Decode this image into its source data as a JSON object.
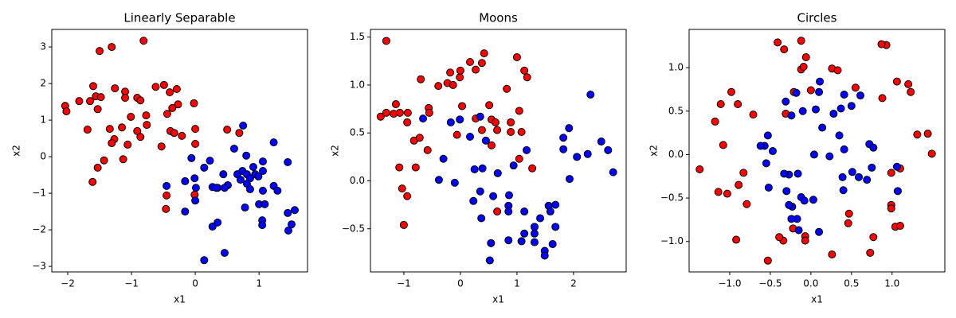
{
  "chart_data": [
    {
      "type": "scatter",
      "title": "Linearly Separable",
      "x_label": "x1",
      "y_label": "x2",
      "xlim": [
        -2.25,
        1.76
      ],
      "ylim": [
        -3.15,
        3.48
      ],
      "xticks": [
        {
          "value": -2,
          "label": "−2"
        },
        {
          "value": -1,
          "label": "−1"
        },
        0,
        1
      ],
      "yticks": [
        {
          "value": -3,
          "label": "−3"
        },
        {
          "value": -2,
          "label": "−2"
        },
        {
          "value": -1,
          "label": "−1"
        },
        0,
        1,
        2,
        3
      ],
      "series": [
        {
          "color": "#ff0000",
          "x": [
            -2.04,
            -2.02,
            -1.82,
            -1.69,
            -1.65,
            -1.6,
            -1.56,
            -1.53,
            -1.5,
            -1.48,
            -1.31,
            -1.26,
            -1.1,
            -1.1,
            -0.91,
            -0.86,
            -0.81,
            -0.62,
            -0.49,
            -0.4,
            -0.29,
            -0.27,
            -0.02,
            -0.36,
            -0.44,
            -0.77,
            -0.76,
            -1.01,
            -1.15,
            -1.34,
            -1.27,
            -1.31,
            -1.06,
            -0.91,
            -0.86,
            -1.13,
            -1.43,
            -1.53,
            -1.61,
            -0.53,
            -0.39,
            -0.33,
            -0.21,
            0.0,
            0.0,
            0.5,
            0.69,
            -0.45,
            -0.46,
            -0.01
          ],
          "y": [
            1.39,
            1.24,
            1.52,
            0.74,
            1.52,
            1.93,
            1.65,
            1.3,
            2.89,
            1.63,
            3.0,
            1.87,
            1.78,
            1.61,
            1.61,
            1.54,
            3.17,
            1.91,
            1.96,
            1.76,
            1.85,
            1.43,
            1.46,
            1.33,
            1.17,
            1.13,
            0.87,
            1.09,
            0.8,
            0.76,
            0.48,
            0.37,
            0.33,
            0.7,
            0.54,
            -0.07,
            -0.1,
            -0.3,
            -0.69,
            0.28,
            0.7,
            0.65,
            0.57,
            0.76,
            0.35,
            0.74,
            0.65,
            -1.06,
            -1.43,
            -1.04
          ]
        },
        {
          "color": "#0000ff",
          "x": [
            0.75,
            1.23,
            1.45,
            0.8,
            0.61,
            -0.06,
            0.23,
            0.14,
            -0.01,
            -0.16,
            -0.45,
            0.01,
            0.44,
            0.27,
            0.35,
            0.51,
            0.66,
            0.74,
            0.81,
            0.91,
            0.94,
            0.86,
            0.99,
            0.71,
            0.81,
            0.86,
            1.06,
            1.23,
            1.29,
            1.06,
            1.0,
            0.78,
            1.05,
            1.05,
            1.09,
            1.45,
            1.56,
            1.51,
            1.46,
            0.46,
            0.14,
            0.27,
            0.35,
            0.46,
            -0.16,
            0.0,
            0.33,
            1.06
          ],
          "y": [
            0.85,
            0.39,
            -0.15,
            0.03,
            0.22,
            -0.04,
            -0.11,
            -0.3,
            -0.59,
            -0.67,
            -0.8,
            -0.85,
            -0.48,
            -0.83,
            -0.85,
            -0.78,
            -0.48,
            -0.39,
            -0.48,
            -0.28,
            -0.48,
            -0.59,
            -0.54,
            -0.63,
            -0.74,
            -0.89,
            -0.39,
            -0.8,
            -0.93,
            -0.93,
            -1.3,
            -1.39,
            -1.74,
            -1.87,
            -1.3,
            -1.54,
            -1.46,
            -1.85,
            -2.02,
            -2.63,
            -2.83,
            -1.91,
            -1.8,
            -0.85,
            -1.5,
            -1.2,
            -0.85,
            -0.13
          ]
        }
      ]
    },
    {
      "type": "scatter",
      "title": "Moons",
      "x_label": "x1",
      "y_label": "x2",
      "xlim": [
        -1.59,
        2.93
      ],
      "ylim": [
        -0.95,
        1.58
      ],
      "xticks": [
        {
          "value": -1,
          "label": "−1"
        },
        0,
        1,
        2
      ],
      "yticks": [
        {
          "value": -0.5,
          "label": "−0.5"
        },
        {
          "value": 0,
          "label": "0.0"
        },
        0.5,
        {
          "value": 1,
          "label": "1.0"
        },
        1.5
      ],
      "series": [
        {
          "color": "#ff0000",
          "x": [
            -1.31,
            -1.41,
            -1.31,
            -1.14,
            -1.18,
            -1.07,
            -0.93,
            -0.94,
            -1.08,
            -1.03,
            -0.94,
            -1.0,
            -0.82,
            -0.79,
            -0.72,
            -0.7,
            -0.58,
            -0.56,
            -0.55,
            -0.39,
            -0.23,
            -0.18,
            -0.13,
            -0.01,
            0.0,
            0.03,
            0.17,
            0.27,
            0.38,
            0.42,
            0.51,
            0.38,
            0.55,
            0.62,
            0.55,
            0.65,
            0.65,
            0.89,
            0.89,
            0.82,
            1.0,
            1.04,
            1.13,
            1.18,
            1.08,
            1.04,
            1.27,
            0.27,
            -0.06
          ],
          "y": [
            1.46,
            0.67,
            0.71,
            0.8,
            0.7,
            0.71,
            0.71,
            0.61,
            0.14,
            -0.08,
            -0.16,
            -0.46,
            0.42,
            0.14,
            0.45,
            1.06,
            0.32,
            0.76,
            0.71,
            0.99,
            1.02,
            1.13,
            1.0,
            1.08,
            1.15,
            0.78,
            1.24,
            1.16,
            1.23,
            1.33,
            0.79,
            0.53,
            0.64,
            0.61,
            0.37,
            0.53,
            -0.32,
            0.61,
            0.51,
            0.96,
            1.29,
            0.73,
            1.15,
            1.08,
            0.51,
            0.23,
            0.13,
            0.65,
            0.48
          ]
        },
        {
          "color": "#0000ff",
          "x": [
            -0.66,
            -0.3,
            -0.38,
            -0.1,
            -0.17,
            -0.01,
            0.17,
            0.35,
            0.45,
            0.39,
            0.25,
            0.23,
            0.35,
            0.37,
            0.66,
            0.58,
            0.54,
            0.52,
            0.85,
            0.85,
            0.86,
            0.85,
            0.94,
            1.17,
            1.13,
            1.08,
            1.13,
            1.31,
            1.31,
            1.31,
            1.41,
            1.49,
            1.49,
            1.56,
            1.59,
            1.68,
            1.63,
            1.68,
            1.82,
            1.82,
            1.92,
            1.93,
            2.06,
            2.25,
            2.3,
            2.49,
            2.61,
            2.7
          ],
          "y": [
            0.65,
            0.23,
            0.01,
            -0.02,
            0.61,
            0.64,
            0.46,
            0.67,
            0.42,
            0.13,
            0.12,
            -0.21,
            -0.11,
            -0.39,
            0.08,
            -0.16,
            -0.65,
            -0.83,
            -0.26,
            -0.32,
            -0.15,
            -0.62,
            0.16,
            0.32,
            -0.32,
            -0.63,
            -0.55,
            -0.48,
            -0.55,
            -0.64,
            -0.39,
            -0.73,
            -0.78,
            -0.26,
            -0.32,
            -0.25,
            -0.66,
            -0.48,
            0.45,
            0.33,
            0.55,
            0.02,
            0.25,
            0.28,
            0.9,
            0.41,
            0.32,
            0.09
          ]
        }
      ]
    },
    {
      "type": "scatter",
      "title": "Circles",
      "x_label": "x1",
      "y_label": "x2",
      "xlim": [
        -1.5,
        1.65
      ],
      "ylim": [
        -1.35,
        1.44
      ],
      "xticks": [
        {
          "value": -1,
          "label": "−1.0"
        },
        {
          "value": -0.5,
          "label": "−0.5"
        },
        {
          "value": 0,
          "label": "0.0"
        },
        0.5,
        {
          "value": 1,
          "label": "1.0"
        }
      ],
      "yticks": [
        {
          "value": -1,
          "label": "−1.0"
        },
        {
          "value": -0.5,
          "label": "−0.5"
        },
        {
          "value": 0,
          "label": "0.0"
        },
        0.5,
        {
          "value": 1,
          "label": "1.0"
        }
      ],
      "series": [
        {
          "color": "#ff0000",
          "x": [
            -1.37,
            -1.18,
            -1.11,
            -1.08,
            -1.14,
            -1.03,
            -0.98,
            -0.9,
            -0.89,
            -0.92,
            -0.83,
            -0.79,
            -0.71,
            -0.41,
            -0.33,
            -0.12,
            -0.06,
            -0.12,
            -0.09,
            0.26,
            0.33,
            0.0,
            -0.21,
            0.55,
            1.06,
            0.93,
            0.87,
            0.88,
            1.2,
            1.23,
            1.31,
            1.44,
            1.49,
            0.99,
            0.99,
            0.99,
            1.1,
            1.04,
            1.1,
            0.77,
            0.73,
            0.46,
            0.47,
            0.26,
            -0.07,
            -0.07,
            -0.22,
            -0.34,
            -0.39,
            -0.53,
            -0.31
          ],
          "y": [
            -0.17,
            0.38,
            0.58,
            0.11,
            -0.43,
            -0.45,
            0.72,
            0.58,
            -0.35,
            -0.98,
            -0.21,
            -0.57,
            0.46,
            1.29,
            1.21,
            1.31,
            1.12,
            0.98,
            1.01,
            0.99,
            0.97,
            0.74,
            0.72,
            0.77,
            0.84,
            1.26,
            1.27,
            0.65,
            0.81,
            0.72,
            0.23,
            0.24,
            0.01,
            -0.21,
            -0.58,
            -0.62,
            -0.16,
            -0.83,
            -0.82,
            -0.95,
            -1.13,
            -0.79,
            -0.68,
            -1.15,
            -0.94,
            -0.99,
            -0.85,
            -0.99,
            -0.95,
            -1.22,
            0.47
          ]
        },
        {
          "color": "#0000ff",
          "x": [
            -0.31,
            -0.18,
            0.11,
            0.1,
            0.28,
            0.37,
            0.5,
            0.61,
            0.41,
            0.06,
            -0.1,
            -0.24,
            -0.57,
            -0.53,
            -0.47,
            -0.62,
            -0.55,
            -0.52,
            -0.27,
            -0.33,
            -0.16,
            0.14,
            0.35,
            0.41,
            0.23,
            0.04,
            0.51,
            0.72,
            0.77,
            0.75,
            1.06,
            1.07,
            0.59,
            0.69,
            0.4,
            0.39,
            -0.12,
            -0.08,
            0.03,
            -0.23,
            -0.17,
            0.1,
            -0.3,
            -0.27,
            -0.24,
            -0.15
          ],
          "y": [
            0.61,
            0.71,
            0.84,
            0.72,
            0.47,
            0.53,
            0.56,
            0.68,
            0.69,
            0.52,
            0.5,
            0.45,
            0.1,
            0.22,
            0.04,
            0.1,
            -0.1,
            -0.38,
            -0.23,
            -0.22,
            -0.22,
            0.31,
            0.22,
            0.06,
            -0.02,
            0.0,
            -0.2,
            0.12,
            0.08,
            -0.15,
            -0.14,
            -0.42,
            -0.26,
            -0.29,
            -0.41,
            -0.26,
            -0.49,
            -0.53,
            -0.52,
            -0.6,
            -0.74,
            -0.89,
            -0.42,
            -0.58,
            -0.74,
            -0.87
          ]
        }
      ]
    }
  ]
}
